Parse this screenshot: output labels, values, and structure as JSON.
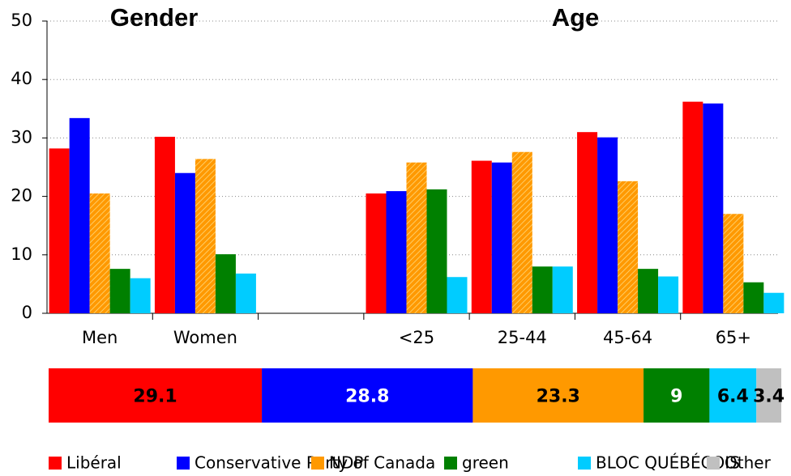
{
  "chart_data": {
    "type": "bar",
    "annotations": [
      "Gender",
      "Age"
    ],
    "categories": [
      "Men",
      "Women",
      null,
      "<25",
      "25-44",
      "45-64",
      "65+"
    ],
    "ylim": [
      0,
      50
    ],
    "yticks": [
      0,
      10,
      20,
      30,
      40,
      50
    ],
    "grid": true,
    "series": [
      {
        "name": "Libéral",
        "color": "#ff0000",
        "values": [
          28.2,
          30.2,
          null,
          20.5,
          26.1,
          31.0,
          36.2
        ],
        "total": 29.1
      },
      {
        "name": "Conservative Party of Canada",
        "color": "#0000ff",
        "values": [
          33.4,
          24.0,
          null,
          20.9,
          25.8,
          30.1,
          35.9
        ],
        "total": 28.8
      },
      {
        "name": "NDP",
        "color": "#ff9900",
        "hatch": true,
        "values": [
          20.5,
          26.4,
          null,
          25.8,
          27.6,
          22.6,
          17.0
        ],
        "total": 23.3
      },
      {
        "name": "green",
        "color": "#008000",
        "values": [
          7.6,
          10.1,
          null,
          21.2,
          8.0,
          7.6,
          5.3
        ],
        "total": 9.0
      },
      {
        "name": "BLOC QUÉBÉCOIS",
        "color": "#00ccff",
        "values": [
          6.0,
          6.8,
          null,
          6.2,
          8.0,
          6.3,
          3.5
        ],
        "total": 6.4
      }
    ],
    "other": {
      "name": "Other",
      "color": "#c0c0c0",
      "total": 3.4
    }
  }
}
